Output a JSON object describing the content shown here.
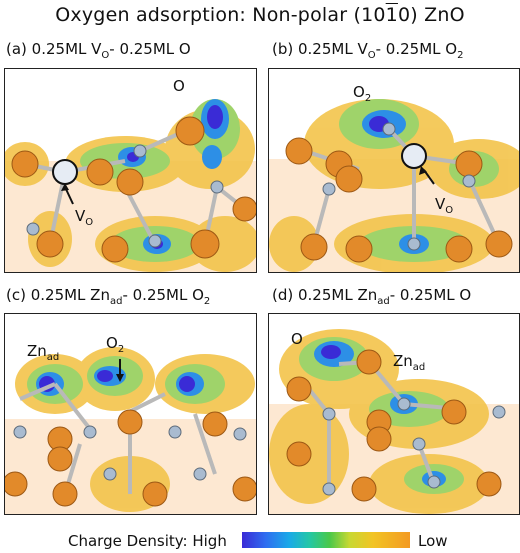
{
  "title": {
    "prefix": "Oxygen adsorption: Non-polar (10",
    "overline_digit": "1",
    "suffix": "0) ZnO"
  },
  "panels": {
    "a": {
      "label_main": "(a) 0.25ML V",
      "label_sub1": "O",
      "label_mid": "- 0.25ML O",
      "annot_O": "O",
      "annot_V": "V",
      "annot_V_sub": "O"
    },
    "b": {
      "label_main": "(b) 0.25ML V",
      "label_sub1": "O",
      "label_mid": "- 0.25ML O",
      "label_sub2": "2",
      "annot_O2": "O",
      "annot_O2_sub": "2",
      "annot_V": "V",
      "annot_V_sub": "O"
    },
    "c": {
      "label_main": "(c) 0.25ML Zn",
      "label_sub1": "ad",
      "label_mid": "- 0.25ML O",
      "label_sub2": "2",
      "annot_Zn": "Zn",
      "annot_Zn_sub": "ad",
      "annot_O2": "O",
      "annot_O2_sub": "2"
    },
    "d": {
      "label_main": "(d) 0.25ML Zn",
      "label_sub1": "ad",
      "label_mid": "- 0.25ML O",
      "annot_O": "O",
      "annot_Zn": "Zn",
      "annot_Zn_sub": "ad"
    }
  },
  "colorbar": {
    "label": "Charge Density: High",
    "low_label": "Low",
    "colors": [
      "#3a2bd6",
      "#2f6df0",
      "#1aa9e8",
      "#23c7a7",
      "#49c84a",
      "#c8d832",
      "#f2c425",
      "#f39a23"
    ]
  }
}
